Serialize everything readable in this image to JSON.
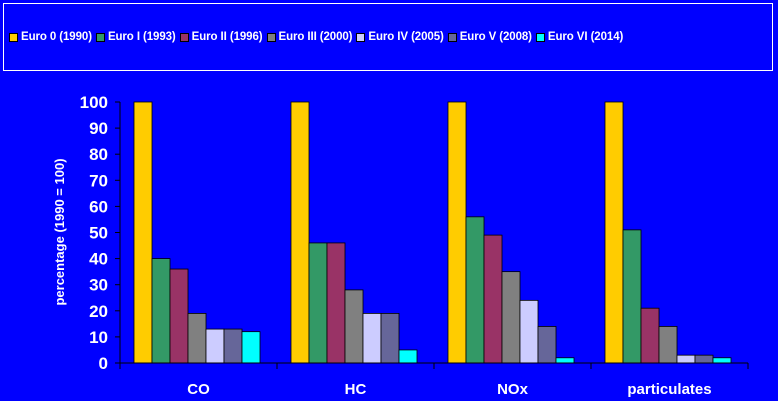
{
  "chart_data": {
    "type": "bar",
    "title": "",
    "xlabel": "",
    "ylabel": "percentage (1990 = 100)",
    "ylim": [
      0,
      100
    ],
    "yticks": [
      0,
      10,
      20,
      30,
      40,
      50,
      60,
      70,
      80,
      90,
      100
    ],
    "legend_position": "top",
    "grid": false,
    "categories": [
      "CO",
      "HC",
      "NOx",
      "particulates"
    ],
    "series": [
      {
        "name": "Euro 0 (1990)",
        "color": "#ffcc00",
        "values": [
          100,
          100,
          100,
          100
        ]
      },
      {
        "name": "Euro I (1993)",
        "color": "#339966",
        "values": [
          40,
          46,
          56,
          51
        ]
      },
      {
        "name": "Euro II (1996)",
        "color": "#993366",
        "values": [
          36,
          46,
          49,
          21
        ]
      },
      {
        "name": "Euro III (2000)",
        "color": "#808080",
        "values": [
          19,
          28,
          35,
          14
        ]
      },
      {
        "name": "Euro IV (2005)",
        "color": "#ccccff",
        "values": [
          13,
          19,
          24,
          3
        ]
      },
      {
        "name": "Euro V (2008)",
        "color": "#666699",
        "values": [
          13,
          19,
          14,
          3
        ]
      },
      {
        "name": "Euro VI (2014)",
        "color": "#00ffff",
        "values": [
          12,
          5,
          2,
          2
        ]
      }
    ]
  }
}
